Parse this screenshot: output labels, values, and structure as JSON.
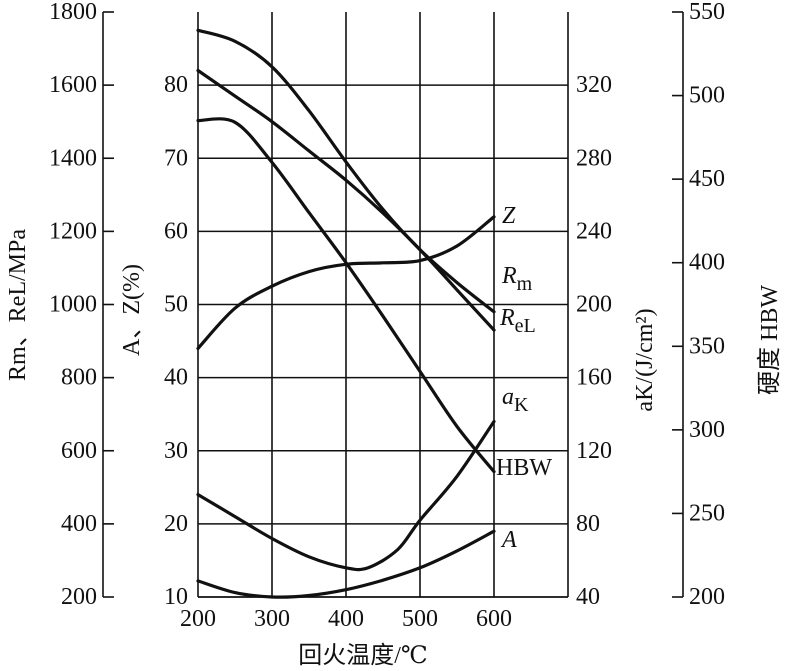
{
  "chart_data": {
    "type": "line",
    "xlabel": "回火温度/℃",
    "x_ticks": [
      200,
      300,
      400,
      500,
      600
    ],
    "xlim": [
      200,
      700
    ],
    "axes": {
      "strength": {
        "label": "Rm、ReL/MPa",
        "ticks": [
          200,
          400,
          600,
          800,
          1000,
          1200,
          1400,
          1600,
          1800
        ],
        "range": [
          200,
          1800
        ]
      },
      "elong": {
        "label": "A、Z(%)",
        "ticks": [
          10,
          20,
          30,
          40,
          50,
          60,
          70,
          80
        ],
        "range": [
          10,
          90
        ]
      },
      "impact": {
        "label": "aK/(J/cm²)",
        "ticks": [
          40,
          80,
          120,
          160,
          200,
          240,
          280,
          320
        ],
        "range": [
          40,
          360
        ]
      },
      "hardness": {
        "label": "硬度 HBW",
        "ticks": [
          200,
          250,
          300,
          350,
          400,
          450,
          500,
          550
        ],
        "range": [
          200,
          550
        ]
      }
    },
    "series": [
      {
        "name": "Rm",
        "axis": "strength",
        "x": [
          200,
          250,
          300,
          350,
          400,
          450,
          500,
          550,
          600
        ],
        "y": [
          1750,
          1720,
          1650,
          1530,
          1390,
          1260,
          1150,
          1060,
          980
        ]
      },
      {
        "name": "ReL",
        "axis": "strength",
        "x": [
          200,
          250,
          300,
          350,
          400,
          450,
          500,
          550,
          600
        ],
        "y": [
          1640,
          1570,
          1500,
          1420,
          1340,
          1250,
          1150,
          1040,
          930
        ]
      },
      {
        "name": "HBW",
        "axis": "hardness",
        "x": [
          200,
          250,
          300,
          350,
          400,
          450,
          500,
          550,
          600
        ],
        "y": [
          485,
          484,
          460,
          430,
          400,
          368,
          335,
          302,
          275
        ]
      },
      {
        "name": "Z",
        "axis": "elong",
        "x": [
          200,
          250,
          300,
          350,
          400,
          450,
          500,
          550,
          600
        ],
        "y": [
          44,
          49.5,
          52.5,
          54.5,
          55.5,
          55.7,
          56,
          58,
          62
        ]
      },
      {
        "name": "aK",
        "axis": "impact",
        "x": [
          200,
          250,
          300,
          350,
          400,
          430,
          470,
          500,
          550,
          600
        ],
        "y": [
          96,
          84,
          72,
          62,
          56,
          56,
          66,
          82,
          106,
          136
        ]
      },
      {
        "name": "A",
        "axis": "elong",
        "x": [
          200,
          250,
          300,
          350,
          400,
          450,
          500,
          550,
          600
        ],
        "y": [
          12.2,
          10.6,
          10,
          10.2,
          11,
          12.3,
          14,
          16.3,
          19
        ]
      }
    ],
    "curve_labels": {
      "Z": {
        "main": "Z"
      },
      "Rm": {
        "main": "R",
        "sub": "m"
      },
      "ReL": {
        "main": "R",
        "sub": "eL"
      },
      "aK": {
        "main": "a",
        "sub": "K"
      },
      "HBW": {
        "main": "HBW"
      },
      "A": {
        "main": "A"
      }
    }
  }
}
